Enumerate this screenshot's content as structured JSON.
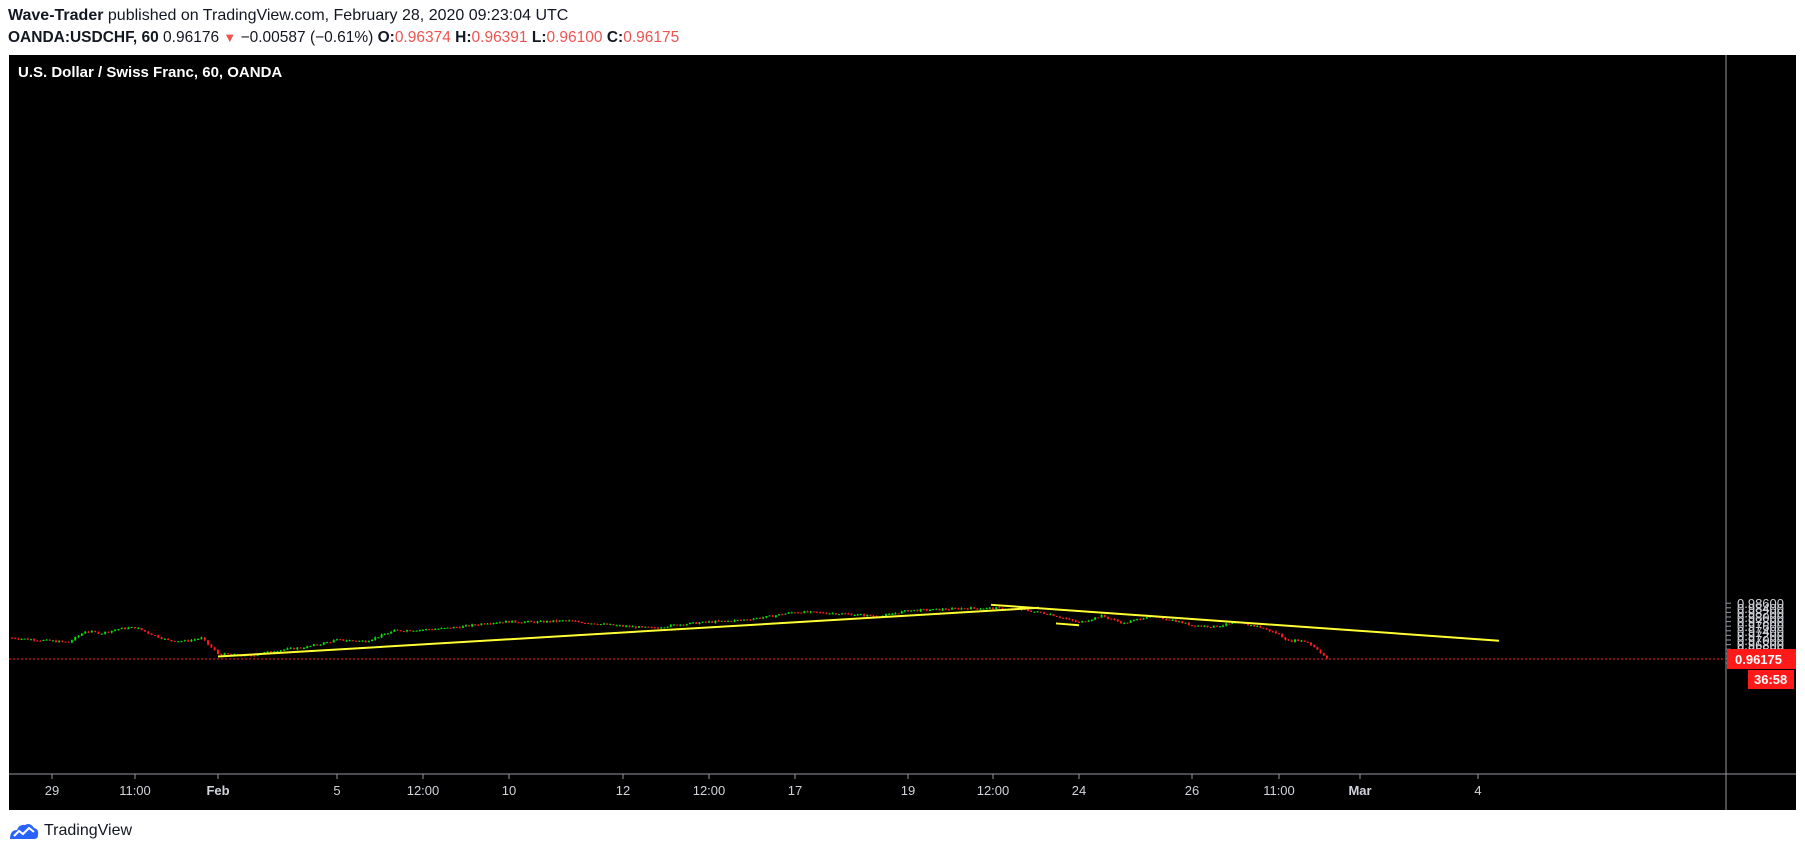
{
  "header": {
    "author": "Wave-Trader",
    "published_text": "published on TradingView.com, February 28, 2020 09:23:04 UTC",
    "symbol": "OANDA:USDCHF, 60",
    "last": "0.96176",
    "change_arrow": "▼",
    "change": "−0.00587 (−0.61%)",
    "o_label": "O:",
    "o_value": "0.96374",
    "h_label": "H:",
    "h_value": "0.96391",
    "l_label": "L:",
    "l_value": "0.96100",
    "c_label": "C:",
    "c_value": "0.96175"
  },
  "footer": {
    "brand": "TradingView",
    "logo_icon": "tradingview-logo-icon"
  },
  "colors": {
    "up": "#00e600",
    "down": "#ff1a1a",
    "trendline": "#ffff33",
    "background": "#000000",
    "price_tag": "#ff1a1a",
    "axis_text": "#d1d4dc"
  },
  "chart_data": {
    "type": "candlestick",
    "title": "U.S. Dollar / Swiss Franc, 60, OANDA",
    "ylim": [
      0.9596,
      0.9866
    ],
    "y_ticks": [
      "0.96000",
      "0.96200",
      "0.96400",
      "0.96600",
      "0.96800",
      "0.97000",
      "0.97200",
      "0.97400",
      "0.97600",
      "0.97800",
      "0.98000",
      "0.98200",
      "0.98400",
      "0.98600"
    ],
    "x_ticks": [
      "29",
      "11:00",
      "Feb",
      "5",
      "12:00",
      "10",
      "12",
      "12:00",
      "17",
      "19",
      "12:00",
      "24",
      "26",
      "11:00",
      "Mar",
      "4"
    ],
    "price_series": [
      [
        "29",
        0.971
      ],
      [
        "",
        0.969
      ],
      [
        "",
        0.9738
      ],
      [
        "",
        0.973
      ],
      [
        "",
        0.9748
      ],
      [
        "11:00",
        0.9755
      ],
      [
        "",
        0.9725
      ],
      [
        "",
        0.9698
      ],
      [
        "",
        0.9695
      ],
      [
        "",
        0.9708
      ],
      [
        "Feb",
        0.964
      ],
      [
        "",
        0.963
      ],
      [
        "",
        0.9655
      ],
      [
        "",
        0.967
      ],
      [
        "5",
        0.97
      ],
      [
        "",
        0.9695
      ],
      [
        "",
        0.974
      ],
      [
        "12:00",
        0.9745
      ],
      [
        "",
        0.975
      ],
      [
        "",
        0.976
      ],
      [
        "",
        0.9775
      ],
      [
        "10",
        0.978
      ],
      [
        "",
        0.9778
      ],
      [
        "",
        0.9784
      ],
      [
        "",
        0.9772
      ],
      [
        "12",
        0.976
      ],
      [
        "",
        0.9752
      ],
      [
        "",
        0.9768
      ],
      [
        "12:00",
        0.9778
      ],
      [
        "",
        0.9785
      ],
      [
        "",
        0.98
      ],
      [
        "17",
        0.9822
      ],
      [
        "",
        0.9818
      ],
      [
        "",
        0.9812
      ],
      [
        "",
        0.9802
      ],
      [
        "19",
        0.9828
      ],
      [
        "",
        0.9832
      ],
      [
        "",
        0.9838
      ],
      [
        "12:00",
        0.9838
      ],
      [
        "",
        0.9832
      ],
      [
        "",
        0.9812
      ],
      [
        "24",
        0.9775
      ],
      [
        "",
        0.9805
      ],
      [
        "",
        0.9772
      ],
      [
        "",
        0.9802
      ],
      [
        "",
        0.979
      ],
      [
        "26",
        0.9764
      ],
      [
        "",
        0.9758
      ],
      [
        "",
        0.9774
      ],
      [
        "",
        0.976
      ],
      [
        "11:00",
        0.9725
      ],
      [
        "",
        0.9695
      ],
      [
        "",
        0.97
      ],
      [
        "",
        0.969
      ],
      [
        "",
        0.966
      ],
      [
        "",
        0.9618
      ]
    ],
    "trendlines": [
      {
        "from": [
          "Feb",
          0.9628
        ],
        "to": [
          "22",
          0.984
        ]
      },
      {
        "from": [
          "20",
          0.9853
        ],
        "to": [
          "4",
          0.9697
        ]
      },
      {
        "from": [
          "23",
          0.9772
        ],
        "to": [
          "24",
          0.9764
        ]
      }
    ],
    "current_price_label": "0.96175",
    "countdown_label": "36:58",
    "current_price": 0.96175
  }
}
